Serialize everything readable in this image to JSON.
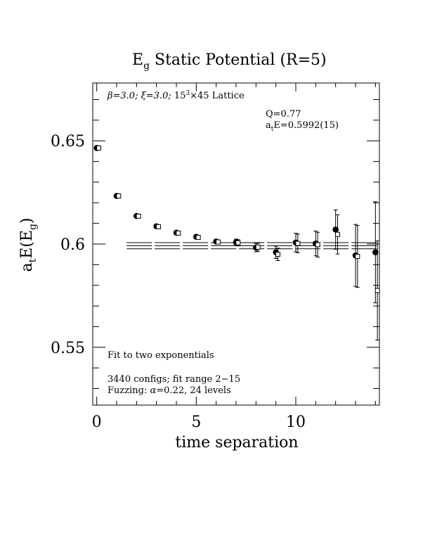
{
  "chart_data": {
    "type": "scatter",
    "title": "E_g Static Potential (R=5)",
    "title_parts": {
      "main": "E",
      "sub": "g",
      "rest": " Static Potential (R=5)"
    },
    "xlabel": "time separation",
    "ylabel": "a_tE(E_g)",
    "ylabel_parts": {
      "a": "a",
      "t": "t",
      "mid": "E(E",
      "g": "g",
      "close": ")"
    },
    "xlim": [
      -0.2,
      14.2
    ],
    "ylim": [
      0.522,
      0.678
    ],
    "x_ticks": [
      0,
      5,
      10
    ],
    "x_tick_labels": [
      "0",
      "5",
      "10"
    ],
    "y_ticks": [
      0.55,
      0.6,
      0.65
    ],
    "y_tick_labels": [
      "0.55",
      "0.6",
      "0.65"
    ],
    "grid": false,
    "annotations": {
      "top_left_parts": {
        "beta": "β=3.0; ",
        "xi": "ξ=3.0; ",
        "lat": "15",
        "cube": "3",
        "tail": "×45 Lattice"
      },
      "q": "Q=0.77",
      "ate_parts": {
        "a": "a",
        "t": "t",
        "rest": "E=0.5992(15)"
      },
      "fit_desc": "Fit to two exponentials",
      "configs": "3440 configs; fit range 2−15",
      "fuzz_parts": {
        "label": "Fuzzing: ",
        "alpha": "α",
        "rest": "=0.22, 24 levels"
      }
    },
    "series": [
      {
        "marker": "filled-circle",
        "points": [
          {
            "x": 0,
            "y": 0.6465,
            "err": 0.0003
          },
          {
            "x": 1,
            "y": 0.6233,
            "err": 0.0004
          },
          {
            "x": 2,
            "y": 0.6136,
            "err": 0.0005
          },
          {
            "x": 3,
            "y": 0.6086,
            "err": 0.0006
          },
          {
            "x": 4,
            "y": 0.6055,
            "err": 0.0008
          },
          {
            "x": 5,
            "y": 0.6035,
            "err": 0.001
          },
          {
            "x": 6,
            "y": 0.6012,
            "err": 0.0012
          },
          {
            "x": 7,
            "y": 0.6009,
            "err": 0.0015
          },
          {
            "x": 8,
            "y": 0.5983,
            "err": 0.002
          },
          {
            "x": 9,
            "y": 0.596,
            "err": 0.003
          },
          {
            "x": 10,
            "y": 0.6007,
            "err": 0.0045
          },
          {
            "x": 11,
            "y": 0.6003,
            "err": 0.006
          },
          {
            "x": 12,
            "y": 0.607,
            "err": 0.0095
          },
          {
            "x": 13,
            "y": 0.5945,
            "err": 0.015
          },
          {
            "x": 14,
            "y": 0.596,
            "err": 0.0245
          }
        ]
      },
      {
        "marker": "open-square",
        "points": [
          {
            "x": 0.1,
            "y": 0.6465,
            "err": 0.0003
          },
          {
            "x": 1.1,
            "y": 0.6233,
            "err": 0.0004
          },
          {
            "x": 2.1,
            "y": 0.6135,
            "err": 0.0005
          },
          {
            "x": 3.1,
            "y": 0.6084,
            "err": 0.0006
          },
          {
            "x": 4.1,
            "y": 0.6053,
            "err": 0.0008
          },
          {
            "x": 5.1,
            "y": 0.6032,
            "err": 0.001
          },
          {
            "x": 6.1,
            "y": 0.601,
            "err": 0.0012
          },
          {
            "x": 7.1,
            "y": 0.6006,
            "err": 0.0015
          },
          {
            "x": 8.1,
            "y": 0.5985,
            "err": 0.002
          },
          {
            "x": 9.1,
            "y": 0.595,
            "err": 0.003
          },
          {
            "x": 10.1,
            "y": 0.6003,
            "err": 0.0045
          },
          {
            "x": 11.1,
            "y": 0.5997,
            "err": 0.006
          },
          {
            "x": 12.1,
            "y": 0.6047,
            "err": 0.0095
          },
          {
            "x": 13.1,
            "y": 0.594,
            "err": 0.015
          },
          {
            "x": 14.1,
            "y": 0.5775,
            "err": 0.024
          }
        ]
      }
    ],
    "fit": {
      "range": [
        1.5,
        14.2
      ],
      "value": 0.5992,
      "error": 0.0015
    }
  }
}
